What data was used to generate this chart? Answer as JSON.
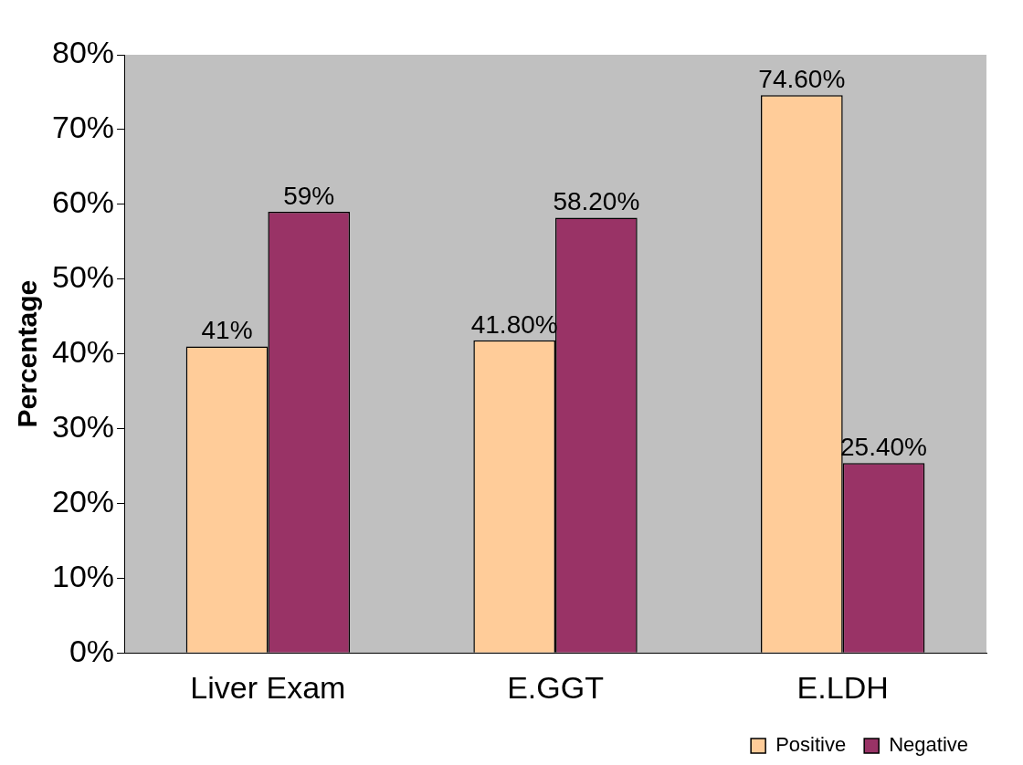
{
  "chart_data": {
    "type": "bar",
    "ylabel": "Percentage",
    "categories": [
      "Liver Exam",
      "E.GGT",
      "E.LDH"
    ],
    "series": [
      {
        "name": "Positive",
        "color": "#ffcc99",
        "values": [
          41,
          41.8,
          74.6
        ],
        "value_labels": [
          "41%",
          "41.80%",
          "74.60%"
        ]
      },
      {
        "name": "Negative",
        "color": "#993366",
        "values": [
          59,
          58.2,
          25.4
        ],
        "value_labels": [
          "59%",
          "58.20%",
          "25.40%"
        ]
      }
    ],
    "ylim": [
      0,
      80
    ],
    "yticks": [
      {
        "value": 0,
        "label": "0%"
      },
      {
        "value": 10,
        "label": "10%"
      },
      {
        "value": 20,
        "label": "20%"
      },
      {
        "value": 30,
        "label": "30%"
      },
      {
        "value": 40,
        "label": "40%"
      },
      {
        "value": 50,
        "label": "50%"
      },
      {
        "value": 60,
        "label": "60%"
      },
      {
        "value": 70,
        "label": "70%"
      },
      {
        "value": 80,
        "label": "80%"
      }
    ],
    "grid": false,
    "legend": "bottom right"
  }
}
